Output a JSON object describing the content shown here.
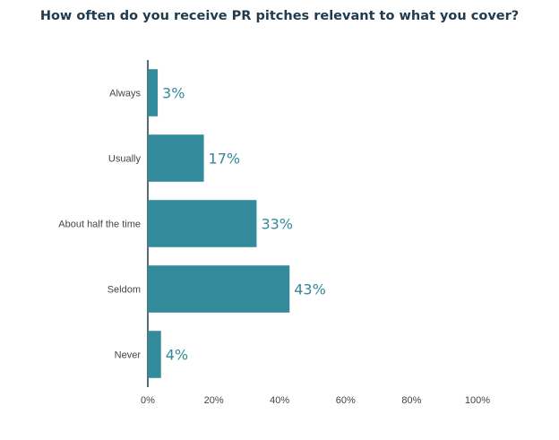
{
  "chart_data": {
    "type": "bar",
    "orientation": "horizontal",
    "title": "How often do you receive PR pitches relevant to what you cover?",
    "categories": [
      "Always",
      "Usually",
      "About half the time",
      "Seldom",
      "Never"
    ],
    "values": [
      3,
      17,
      33,
      43,
      4
    ],
    "data_labels": [
      "3%",
      "17%",
      "33%",
      "43%",
      "4%"
    ],
    "x_ticks": [
      "0%",
      "20%",
      "40%",
      "60%",
      "80%",
      "100%"
    ],
    "xlim": [
      0,
      100
    ],
    "grid": false,
    "colors": {
      "bar": "#338a9b",
      "label": "#338a9b",
      "axis": "#1f3b4d"
    }
  }
}
